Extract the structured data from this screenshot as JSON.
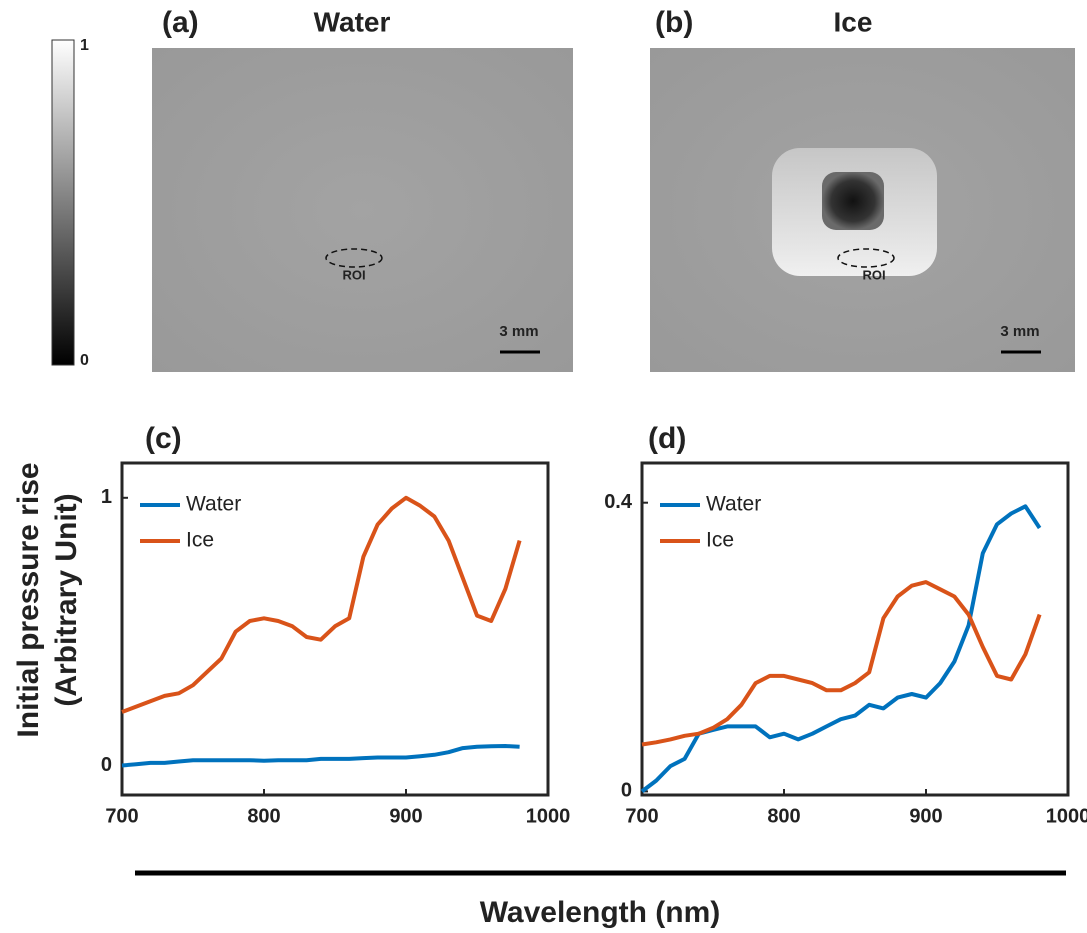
{
  "images": [
    {
      "panel": "(a)",
      "title": "Water",
      "roi": "ROI",
      "scale_label": "3 mm"
    },
    {
      "panel": "(b)",
      "title": "Ice",
      "roi": "ROI",
      "scale_label": "3 mm"
    }
  ],
  "colorbar": {
    "lim": [
      0,
      1
    ],
    "ticks": [
      0,
      1
    ]
  },
  "figure": {
    "ylabel_line1": "Initial pressure rise",
    "ylabel_line2": "(Arbitrary Unit)",
    "xlabel": "Wavelength (nm)"
  },
  "chart_data": [
    {
      "type": "line",
      "title": "(c)",
      "legend": "upper left",
      "x": [
        700,
        710,
        720,
        730,
        740,
        750,
        760,
        770,
        780,
        790,
        800,
        810,
        820,
        830,
        840,
        850,
        860,
        870,
        880,
        890,
        900,
        910,
        920,
        930,
        940,
        950,
        960,
        970,
        980
      ],
      "series": [
        {
          "name": "Water",
          "color": "#0072bd",
          "values": [
            0.0,
            0.005,
            0.01,
            0.01,
            0.015,
            0.02,
            0.02,
            0.02,
            0.02,
            0.02,
            0.018,
            0.02,
            0.02,
            0.02,
            0.025,
            0.025,
            0.025,
            0.028,
            0.03,
            0.03,
            0.03,
            0.035,
            0.04,
            0.05,
            0.065,
            0.07,
            0.072,
            0.073,
            0.07
          ]
        },
        {
          "name": "Ice",
          "color": "#d95319",
          "values": [
            0.2,
            0.22,
            0.24,
            0.26,
            0.27,
            0.3,
            0.35,
            0.4,
            0.5,
            0.54,
            0.55,
            0.54,
            0.52,
            0.48,
            0.47,
            0.52,
            0.55,
            0.78,
            0.9,
            0.96,
            1.0,
            0.97,
            0.93,
            0.84,
            0.7,
            0.56,
            0.54,
            0.66,
            0.84
          ]
        }
      ],
      "xlim": [
        700,
        1000
      ],
      "xticks": [
        700,
        800,
        900,
        1000
      ],
      "ylim": [
        -0.11,
        1.13
      ],
      "yticks": [
        0,
        1
      ]
    },
    {
      "type": "line",
      "title": "(d)",
      "legend": "upper left",
      "x": [
        700,
        710,
        720,
        730,
        740,
        750,
        760,
        770,
        780,
        790,
        800,
        810,
        820,
        830,
        840,
        850,
        860,
        870,
        880,
        890,
        900,
        910,
        920,
        930,
        940,
        950,
        960,
        970,
        980
      ],
      "series": [
        {
          "name": "Water",
          "color": "#0072bd",
          "values": [
            0.0,
            0.015,
            0.035,
            0.045,
            0.08,
            0.085,
            0.09,
            0.09,
            0.09,
            0.075,
            0.08,
            0.072,
            0.08,
            0.09,
            0.1,
            0.105,
            0.12,
            0.115,
            0.13,
            0.135,
            0.13,
            0.15,
            0.18,
            0.23,
            0.33,
            0.37,
            0.385,
            0.395,
            0.365
          ]
        },
        {
          "name": "Ice",
          "color": "#d95319",
          "values": [
            0.065,
            0.068,
            0.072,
            0.077,
            0.08,
            0.088,
            0.1,
            0.12,
            0.15,
            0.16,
            0.16,
            0.155,
            0.15,
            0.14,
            0.14,
            0.15,
            0.165,
            0.24,
            0.27,
            0.285,
            0.29,
            0.28,
            0.27,
            0.245,
            0.2,
            0.16,
            0.155,
            0.19,
            0.245
          ]
        }
      ],
      "xlim": [
        700,
        1000
      ],
      "xticks": [
        700,
        800,
        900,
        1000
      ],
      "ylim": [
        -0.005,
        0.455
      ],
      "yticks": [
        0,
        0.4
      ]
    }
  ]
}
